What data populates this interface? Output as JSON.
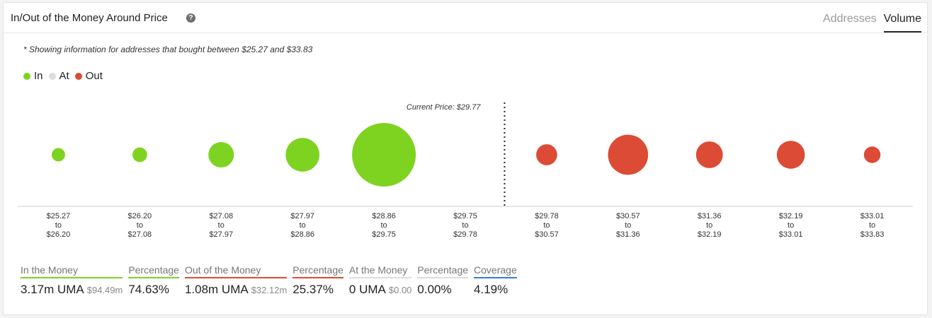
{
  "header": {
    "title": "In/Out of the Money Around Price",
    "help_icon": "question-circle-icon",
    "tabs": [
      {
        "label": "Addresses",
        "active": false
      },
      {
        "label": "Volume",
        "active": true
      }
    ]
  },
  "note": "* Showing information for addresses that bought between $25.27 and $33.83",
  "legend": [
    {
      "label": "In",
      "color": "#7ed321"
    },
    {
      "label": "At",
      "color": "#dddddd"
    },
    {
      "label": "Out",
      "color": "#dc4b35"
    }
  ],
  "colors": {
    "in": "#7ed321",
    "at": "#dddddd",
    "out": "#dc4b35",
    "coverage": "#3a77d9"
  },
  "chart_data": {
    "type": "bubble",
    "current_price_label": "Current Price: $29.77",
    "current_price": 29.77,
    "ranges": [
      {
        "from": "$25.27",
        "to": "$26.20",
        "status": "in",
        "relative_size": 0.21
      },
      {
        "from": "$26.20",
        "to": "$27.08",
        "status": "in",
        "relative_size": 0.23
      },
      {
        "from": "$27.08",
        "to": "$27.97",
        "status": "in",
        "relative_size": 0.4
      },
      {
        "from": "$27.97",
        "to": "$28.86",
        "status": "in",
        "relative_size": 0.53
      },
      {
        "from": "$28.86",
        "to": "$29.75",
        "status": "in",
        "relative_size": 1.0
      },
      {
        "from": "$29.75",
        "to": "$29.78",
        "status": "at",
        "relative_size": 0
      },
      {
        "from": "$29.78",
        "to": "$30.57",
        "status": "out",
        "relative_size": 0.33
      },
      {
        "from": "$30.57",
        "to": "$31.36",
        "status": "out",
        "relative_size": 0.63
      },
      {
        "from": "$31.36",
        "to": "$32.19",
        "status": "out",
        "relative_size": 0.42
      },
      {
        "from": "$32.19",
        "to": "$33.01",
        "status": "out",
        "relative_size": 0.44
      },
      {
        "from": "$33.01",
        "to": "$33.83",
        "status": "out",
        "relative_size": 0.26
      }
    ],
    "to_word": "to"
  },
  "stats": [
    {
      "label": "In the Money",
      "value": "3.17m UMA",
      "sub": "$94.49m",
      "color": "#7ed321"
    },
    {
      "label": "Percentage",
      "value": "74.63%",
      "sub": "",
      "color": "#7ed321"
    },
    {
      "label": "Out of the Money",
      "value": "1.08m UMA",
      "sub": "$32.12m",
      "color": "#dc4b35"
    },
    {
      "label": "Percentage",
      "value": "25.37%",
      "sub": "",
      "color": "#dc4b35"
    },
    {
      "label": "At the Money",
      "value": "0 UMA",
      "sub": "$0.00",
      "color": "#dddddd"
    },
    {
      "label": "Percentage",
      "value": "0.00%",
      "sub": "",
      "color": "#dddddd"
    },
    {
      "label": "Coverage",
      "value": "4.19%",
      "sub": "",
      "color": "#3a77d9"
    }
  ]
}
